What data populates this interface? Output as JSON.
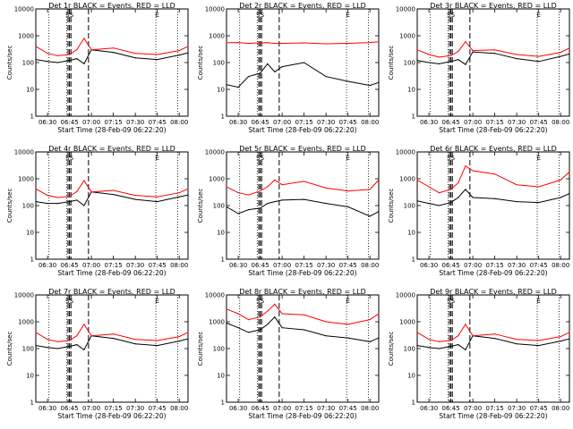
{
  "figure": {
    "ylabel": "Counts/sec",
    "xlabel": "Start Time (28-Feb-09 06:22:20)",
    "xticks": [
      "06:30",
      "06:45",
      "07:00",
      "07:15",
      "07:30",
      "07:45",
      "08:00"
    ],
    "yticks": [
      "1",
      "10",
      "100",
      "1000",
      "10000"
    ],
    "flag_marks": [
      "SS",
      "E"
    ],
    "colors": {
      "events": "#000000",
      "lld": "#ff0000"
    }
  },
  "chart_data": [
    {
      "title": "Det 1r  BLACK = Events, RED = LLD",
      "type": "line",
      "x": [
        "06:22",
        "06:30",
        "06:37",
        "06:45",
        "06:50",
        "06:55",
        "07:00",
        "07:15",
        "07:30",
        "07:45",
        "08:00",
        "08:06"
      ],
      "ylim": [
        1,
        10000
      ],
      "yscale": "log",
      "series": [
        {
          "name": "Events",
          "values": [
            130,
            110,
            100,
            120,
            140,
            90,
            300,
            240,
            150,
            130,
            190,
            230
          ]
        },
        {
          "name": "LLD",
          "values": [
            400,
            220,
            180,
            200,
            300,
            800,
            300,
            350,
            220,
            200,
            280,
            400
          ]
        }
      ],
      "dotted_vlines": [
        "06:31",
        "06:43",
        "07:44",
        "07:59"
      ],
      "dashed_vlines": [
        "06:44",
        "06:45",
        "06:46",
        "06:58"
      ]
    },
    {
      "title": "Det 2r  BLACK = Events, RED = LLD",
      "type": "line",
      "x": [
        "06:22",
        "06:30",
        "06:37",
        "06:45",
        "06:50",
        "06:55",
        "07:00",
        "07:15",
        "07:30",
        "07:45",
        "08:00",
        "08:06"
      ],
      "ylim": [
        1,
        10000
      ],
      "yscale": "log",
      "series": [
        {
          "name": "Events",
          "values": [
            15,
            12,
            30,
            40,
            90,
            45,
            70,
            100,
            30,
            20,
            14,
            18
          ]
        },
        {
          "name": "LLD",
          "values": [
            550,
            560,
            520,
            540,
            550,
            520,
            520,
            540,
            500,
            520,
            560,
            600
          ]
        }
      ],
      "dotted_vlines": [
        "06:31",
        "06:43",
        "07:44",
        "07:59"
      ],
      "dashed_vlines": [
        "06:44",
        "06:45",
        "06:46",
        "06:58"
      ]
    },
    {
      "title": "Det 3r  BLACK = Events, RED = LLD",
      "type": "line",
      "x": [
        "06:22",
        "06:30",
        "06:37",
        "06:45",
        "06:50",
        "06:55",
        "07:00",
        "07:15",
        "07:30",
        "07:45",
        "08:00",
        "08:06"
      ],
      "ylim": [
        1,
        10000
      ],
      "yscale": "log",
      "series": [
        {
          "name": "Events",
          "values": [
            120,
            100,
            90,
            110,
            130,
            85,
            250,
            220,
            140,
            110,
            170,
            210
          ]
        },
        {
          "name": "LLD",
          "values": [
            300,
            200,
            160,
            180,
            260,
            600,
            280,
            300,
            200,
            170,
            240,
            350
          ]
        }
      ],
      "dotted_vlines": [
        "06:31",
        "06:43",
        "07:44",
        "07:59"
      ],
      "dashed_vlines": [
        "06:44",
        "06:45",
        "06:46",
        "06:58"
      ]
    },
    {
      "title": "Det 4r  BLACK = Events, RED = LLD",
      "type": "line",
      "x": [
        "06:22",
        "06:30",
        "06:37",
        "06:45",
        "06:50",
        "06:55",
        "07:00",
        "07:15",
        "07:30",
        "07:45",
        "08:00",
        "08:06"
      ],
      "ylim": [
        1,
        10000
      ],
      "yscale": "log",
      "series": [
        {
          "name": "Events",
          "values": [
            140,
            120,
            120,
            140,
            160,
            100,
            320,
            260,
            170,
            140,
            210,
            250
          ]
        },
        {
          "name": "LLD",
          "values": [
            420,
            240,
            200,
            220,
            330,
            850,
            320,
            370,
            240,
            210,
            300,
            420
          ]
        }
      ],
      "dotted_vlines": [
        "06:31",
        "06:43",
        "07:44",
        "07:59"
      ],
      "dashed_vlines": [
        "06:44",
        "06:45",
        "06:46",
        "06:58"
      ]
    },
    {
      "title": "Det 5r  BLACK = Events, RED = LLD",
      "type": "line",
      "x": [
        "06:22",
        "06:30",
        "06:37",
        "06:45",
        "06:50",
        "06:55",
        "07:00",
        "07:15",
        "07:30",
        "07:45",
        "08:00",
        "08:06"
      ],
      "ylim": [
        1,
        10000
      ],
      "yscale": "log",
      "series": [
        {
          "name": "Events",
          "values": [
            90,
            50,
            70,
            80,
            120,
            140,
            160,
            170,
            120,
            90,
            40,
            60
          ]
        },
        {
          "name": "LLD",
          "values": [
            500,
            300,
            250,
            350,
            500,
            900,
            600,
            800,
            450,
            350,
            400,
            900
          ]
        }
      ],
      "dotted_vlines": [
        "06:31",
        "06:43",
        "07:44",
        "07:59"
      ],
      "dashed_vlines": [
        "06:44",
        "06:45",
        "06:46",
        "06:58"
      ]
    },
    {
      "title": "Det 6r  BLACK = Events, RED = LLD",
      "type": "line",
      "x": [
        "06:22",
        "06:30",
        "06:37",
        "06:45",
        "06:50",
        "06:55",
        "07:00",
        "07:15",
        "07:30",
        "07:45",
        "08:00",
        "08:06"
      ],
      "ylim": [
        1,
        10000
      ],
      "yscale": "log",
      "series": [
        {
          "name": "Events",
          "values": [
            150,
            120,
            100,
            130,
            200,
            400,
            200,
            180,
            140,
            130,
            200,
            280
          ]
        },
        {
          "name": "LLD",
          "values": [
            900,
            500,
            300,
            400,
            700,
            3000,
            2000,
            1500,
            600,
            500,
            900,
            1800
          ]
        }
      ],
      "dotted_vlines": [
        "06:31",
        "06:43",
        "07:44",
        "07:59"
      ],
      "dashed_vlines": [
        "06:44",
        "06:45",
        "06:46",
        "06:58"
      ]
    },
    {
      "title": "Det 7r  BLACK = Events, RED = LLD",
      "type": "line",
      "x": [
        "06:22",
        "06:30",
        "06:37",
        "06:45",
        "06:50",
        "06:55",
        "07:00",
        "07:15",
        "07:30",
        "07:45",
        "08:00",
        "08:06"
      ],
      "ylim": [
        1,
        10000
      ],
      "yscale": "log",
      "series": [
        {
          "name": "Events",
          "values": [
            130,
            110,
            100,
            120,
            140,
            90,
            300,
            240,
            150,
            130,
            190,
            230
          ]
        },
        {
          "name": "LLD",
          "values": [
            400,
            220,
            180,
            200,
            300,
            800,
            300,
            350,
            220,
            200,
            280,
            400
          ]
        }
      ],
      "dotted_vlines": [
        "06:31",
        "06:43",
        "07:44",
        "07:59"
      ],
      "dashed_vlines": [
        "06:44",
        "06:45",
        "06:46",
        "06:58"
      ]
    },
    {
      "title": "Det 8r  BLACK = Events, RED = LLD",
      "type": "line",
      "x": [
        "06:22",
        "06:30",
        "06:37",
        "06:45",
        "06:50",
        "06:55",
        "07:00",
        "07:15",
        "07:30",
        "07:45",
        "08:00",
        "08:06"
      ],
      "ylim": [
        1,
        10000
      ],
      "yscale": "log",
      "series": [
        {
          "name": "Events",
          "values": [
            900,
            600,
            400,
            500,
            800,
            1500,
            600,
            500,
            300,
            250,
            180,
            250
          ]
        },
        {
          "name": "LLD",
          "values": [
            3000,
            2000,
            1200,
            1500,
            2500,
            4500,
            2000,
            1800,
            1000,
            800,
            1200,
            2000
          ]
        }
      ],
      "dotted_vlines": [
        "06:31",
        "06:43",
        "07:44",
        "07:59"
      ],
      "dashed_vlines": [
        "06:44",
        "06:45",
        "06:46",
        "06:58"
      ]
    },
    {
      "title": "Det 9r  BLACK = Events, RED = LLD",
      "type": "line",
      "x": [
        "06:22",
        "06:30",
        "06:37",
        "06:45",
        "06:50",
        "06:55",
        "07:00",
        "07:15",
        "07:30",
        "07:45",
        "08:00",
        "08:06"
      ],
      "ylim": [
        1,
        10000
      ],
      "yscale": "log",
      "series": [
        {
          "name": "Events",
          "values": [
            130,
            110,
            100,
            120,
            140,
            90,
            300,
            240,
            150,
            130,
            190,
            230
          ]
        },
        {
          "name": "LLD",
          "values": [
            400,
            220,
            180,
            200,
            300,
            800,
            300,
            350,
            220,
            200,
            280,
            400
          ]
        }
      ],
      "dotted_vlines": [
        "06:31",
        "06:43",
        "07:44",
        "07:59"
      ],
      "dashed_vlines": [
        "06:44",
        "06:45",
        "06:46",
        "06:58"
      ]
    }
  ]
}
